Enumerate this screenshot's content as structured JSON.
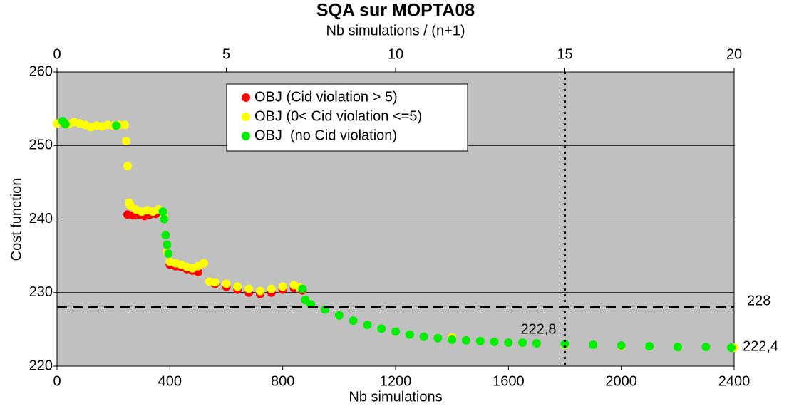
{
  "chart_data": {
    "type": "scatter",
    "title": "SQA sur MOPTA08",
    "xlabel": "Nb simulations",
    "x2label": "Nb simulations / (n+1)",
    "ylabel": "Cost function",
    "xlim": [
      0,
      2400
    ],
    "xticks": [
      0,
      400,
      800,
      1200,
      1600,
      2000,
      2400
    ],
    "x2lim": [
      0,
      20
    ],
    "x2ticks": [
      0,
      5,
      10,
      15,
      20
    ],
    "ylim": [
      220,
      260
    ],
    "yticks": [
      220,
      230,
      240,
      250,
      260
    ],
    "grid": true,
    "background": "#c0c0c0",
    "series": [
      {
        "name": "OBJ (Cid violation > 5)",
        "color": "#ff0000",
        "x": [
          250,
          270,
          290,
          310,
          330,
          350,
          400,
          420,
          440,
          460,
          480,
          500,
          560,
          600,
          640,
          680,
          720,
          760,
          800,
          840,
          870
        ],
        "values": [
          240.6,
          240.5,
          240.6,
          240.4,
          240.6,
          240.7,
          233.8,
          233.6,
          233.5,
          233.2,
          233.0,
          232.8,
          231.2,
          230.8,
          230.4,
          230.0,
          229.8,
          230.0,
          230.4,
          230.6,
          230.3
        ]
      },
      {
        "name": "OBJ (0< Cid violation <=5)",
        "color": "#ffff00",
        "x": [
          0,
          20,
          40,
          60,
          80,
          100,
          120,
          140,
          160,
          180,
          200,
          220,
          240,
          245,
          250,
          255,
          260,
          280,
          300,
          320,
          340,
          360,
          380,
          390,
          400,
          420,
          440,
          460,
          480,
          500,
          520,
          540,
          560,
          600,
          640,
          680,
          720,
          760,
          800,
          840,
          860,
          1400,
          1600,
          1800,
          2000,
          2200,
          2400
        ],
        "values": [
          253.0,
          253.2,
          252.9,
          253.2,
          253.0,
          252.8,
          252.5,
          252.7,
          252.6,
          252.8,
          252.7,
          252.8,
          252.8,
          250.6,
          247.2,
          242.2,
          241.8,
          241.3,
          241.0,
          241.2,
          241.0,
          241.3,
          240.2,
          235.5,
          234.2,
          234.0,
          233.8,
          233.5,
          233.3,
          233.6,
          234.0,
          231.5,
          231.4,
          231.2,
          230.8,
          230.5,
          230.2,
          230.5,
          230.8,
          231.0,
          230.7,
          223.9,
          223.2,
          222.9,
          222.7,
          222.6,
          222.5
        ]
      },
      {
        "name": "OBJ  (no Cid violation)",
        "color": "#00ee00",
        "x": [
          20,
          30,
          210,
          375,
          380,
          385,
          390,
          395,
          870,
          880,
          900,
          950,
          1000,
          1050,
          1100,
          1150,
          1200,
          1250,
          1300,
          1350,
          1400,
          1450,
          1500,
          1550,
          1600,
          1650,
          1700,
          1800,
          1900,
          2000,
          2100,
          2200,
          2300,
          2390
        ],
        "values": [
          253.3,
          252.9,
          252.7,
          241.0,
          240.0,
          237.8,
          236.5,
          235.3,
          230.5,
          229.0,
          228.4,
          227.7,
          226.9,
          226.2,
          225.6,
          225.1,
          224.7,
          224.3,
          224.0,
          223.8,
          223.6,
          223.5,
          223.4,
          223.3,
          223.2,
          223.2,
          223.1,
          223.0,
          222.9,
          222.8,
          222.7,
          222.6,
          222.6,
          222.5
        ]
      }
    ],
    "hline": {
      "value": 228,
      "label": "228"
    },
    "vline_x2": 15,
    "annotations": [
      {
        "x": 1800,
        "y": 222.8,
        "label": "222,8",
        "anchor": "above-left"
      },
      {
        "x": 2400,
        "y": 222.4,
        "label": "222,4",
        "anchor": "right"
      }
    ]
  }
}
